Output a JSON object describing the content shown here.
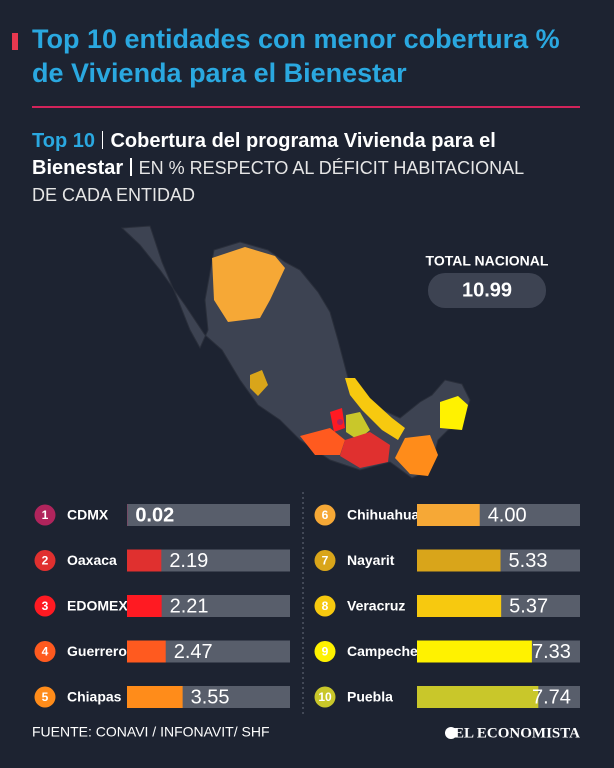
{
  "header": {
    "title": "Top 10 entidades con menor cobertura % de Vivienda para el Bienestar",
    "subtitle_lead": "Top 10",
    "subtitle_main": "Cobertura del programa Vivienda para el Bienestar",
    "subtitle_unit": "EN %  RESPECTO AL DÉFICIT HABITACIONAL DE CADA ENTIDAD"
  },
  "chart_data": {
    "type": "bar",
    "categories": [
      "CDMX",
      "Oaxaca",
      "EDOMEX",
      "Guerrero",
      "Chiapas",
      "Chihuahua",
      "Nayarit",
      "Veracruz",
      "Campeche",
      "Puebla"
    ],
    "ranks": [
      1,
      2,
      3,
      4,
      5,
      6,
      7,
      8,
      9,
      10
    ],
    "values": [
      0.02,
      2.19,
      2.21,
      2.47,
      3.55,
      4.0,
      5.33,
      5.37,
      7.33,
      7.74
    ],
    "value_labels": [
      "0.02",
      "2.19",
      "2.21",
      "2.47",
      "3.55",
      "4.00",
      "5.33",
      "5.37",
      "7.33",
      "7.74"
    ],
    "colors": [
      "#b0245c",
      "#e0302f",
      "#ff1a22",
      "#ff5a1f",
      "#ff8c1a",
      "#f6a836",
      "#d9a51a",
      "#f7c90f",
      "#fff200",
      "#c9c72a"
    ],
    "xlim": [
      0,
      10.4
    ],
    "total_label": "TOTAL NACIONAL",
    "total_value": 10.99
  },
  "footer": {
    "source": "FUENTE: CONAVI / INFONAVIT/ SHF",
    "brand": "EL ECONOMISTA"
  }
}
